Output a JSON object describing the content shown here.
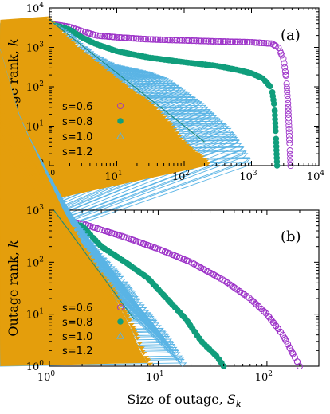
{
  "colors": {
    "s06": "#9d33c8",
    "s08": "#109e7c",
    "s10": "#5ab4e5",
    "s12": "#e49e0c",
    "fit": "#1f8a7a"
  },
  "shared": {
    "xlabel_prefix": "Size of outage, ",
    "xlabel_var": "S",
    "xlabel_sub": "k",
    "ylabel_prefix": "Outage rank, ",
    "ylabel_var": "k"
  },
  "chart_data": [
    {
      "panel_label": "(a)",
      "type": "scatter",
      "xscale": "log",
      "yscale": "log",
      "xlim": [
        1,
        10000
      ],
      "ylim": [
        1,
        10000
      ],
      "xticks": [
        1,
        10,
        100,
        1000,
        10000
      ],
      "yticks": [
        1,
        10,
        100,
        1000,
        10000
      ],
      "xlabel": "",
      "ylabel": "Outage rank, k",
      "legend_position": "bottom-left",
      "fit_line": {
        "x": [
          1,
          200
        ],
        "y": [
          5000,
          4
        ]
      },
      "series": [
        {
          "name": "s=0.6",
          "marker": "open-circle",
          "color": "#9d33c8",
          "points": [
            [
              1,
              4000
            ],
            [
              2,
              3300
            ],
            [
              3,
              2600
            ],
            [
              5,
              2000
            ],
            [
              10,
              1800
            ],
            [
              30,
              1600
            ],
            [
              100,
              1500
            ],
            [
              300,
              1420
            ],
            [
              1000,
              1350
            ],
            [
              2000,
              1250
            ],
            [
              2500,
              1000
            ],
            [
              3000,
              500
            ],
            [
              3300,
              150
            ],
            [
              3500,
              30
            ],
            [
              3700,
              3
            ],
            [
              3800,
              1
            ]
          ]
        },
        {
          "name": "s=0.8",
          "marker": "filled-circle",
          "color": "#109e7c",
          "points": [
            [
              1,
              4000
            ],
            [
              2,
              2800
            ],
            [
              3,
              1800
            ],
            [
              5,
              1200
            ],
            [
              10,
              800
            ],
            [
              30,
              550
            ],
            [
              100,
              420
            ],
            [
              300,
              340
            ],
            [
              600,
              270
            ],
            [
              1000,
              220
            ],
            [
              1500,
              160
            ],
            [
              2000,
              90
            ],
            [
              2200,
              30
            ],
            [
              2300,
              6
            ],
            [
              2400,
              1
            ]
          ]
        },
        {
          "name": "s=1.0",
          "marker": "open-triangle",
          "color": "#5ab4e5",
          "points": [
            [
              1,
              4000
            ],
            [
              2,
              2000
            ],
            [
              3,
              1100
            ],
            [
              5,
              550
            ],
            [
              10,
              300
            ],
            [
              30,
              200
            ],
            [
              60,
              130
            ],
            [
              100,
              70
            ],
            [
              200,
              30
            ],
            [
              300,
              15
            ],
            [
              500,
              7
            ],
            [
              700,
              3
            ],
            [
              900,
              1.5
            ],
            [
              1000,
              1
            ]
          ]
        },
        {
          "name": "s=1.2",
          "marker": "filled-triangle",
          "color": "#e49e0c",
          "points": [
            [
              1,
              5000
            ],
            [
              2,
              1600
            ],
            [
              3,
              800
            ],
            [
              5,
              400
            ],
            [
              10,
              150
            ],
            [
              20,
              60
            ],
            [
              30,
              40
            ],
            [
              50,
              18
            ],
            [
              80,
              7
            ],
            [
              100,
              4
            ],
            [
              150,
              2
            ],
            [
              200,
              1.5
            ],
            [
              250,
              1
            ]
          ]
        }
      ]
    },
    {
      "panel_label": "(b)",
      "type": "scatter",
      "xscale": "log",
      "yscale": "log",
      "xlim": [
        1,
        300
      ],
      "ylim": [
        1,
        1000
      ],
      "xticks": [
        1,
        10,
        100
      ],
      "yticks": [
        1,
        10,
        100,
        1000
      ],
      "xlabel": "Size of outage, S_k",
      "ylabel": "Outage rank, k",
      "legend_position": "bottom-left",
      "fit_line": {
        "x": [
          1.1,
          6
        ],
        "y": [
          1000,
          8
        ]
      },
      "series": [
        {
          "name": "s=0.6",
          "marker": "open-circle",
          "color": "#9d33c8",
          "points": [
            [
              1,
              1000
            ],
            [
              1.1,
              700
            ],
            [
              1.5,
              600
            ],
            [
              2,
              550
            ],
            [
              3,
              420
            ],
            [
              5,
              300
            ],
            [
              10,
              180
            ],
            [
              20,
              100
            ],
            [
              40,
              45
            ],
            [
              70,
              20
            ],
            [
              100,
              10
            ],
            [
              140,
              4
            ],
            [
              180,
              1.5
            ],
            [
              200,
              1
            ]
          ]
        },
        {
          "name": "s=0.8",
          "marker": "filled-circle",
          "color": "#109e7c",
          "points": [
            [
              1,
              1000
            ],
            [
              1.1,
              600
            ],
            [
              1.5,
              550
            ],
            [
              2,
              500
            ],
            [
              2.5,
              300
            ],
            [
              3,
              200
            ],
            [
              5,
              100
            ],
            [
              8,
              50
            ],
            [
              12,
              20
            ],
            [
              18,
              8
            ],
            [
              25,
              3
            ],
            [
              35,
              1.5
            ],
            [
              40,
              1
            ]
          ]
        },
        {
          "name": "s=1.0",
          "marker": "open-triangle",
          "color": "#5ab4e5",
          "points": [
            [
              1,
              1000
            ],
            [
              1.1,
              550
            ],
            [
              1.5,
              480
            ],
            [
              2,
              400
            ],
            [
              3,
              130
            ],
            [
              4,
              70
            ],
            [
              5,
              40
            ],
            [
              7,
              15
            ],
            [
              10,
              6
            ],
            [
              13,
              3
            ],
            [
              16,
              1.5
            ],
            [
              18,
              1
            ]
          ]
        },
        {
          "name": "s=1.2",
          "marker": "filled-triangle",
          "color": "#e49e0c",
          "points": [
            [
              1,
              1000
            ],
            [
              1.05,
              500
            ],
            [
              1.3,
              450
            ],
            [
              1.8,
              400
            ],
            [
              2,
              200
            ],
            [
              2.5,
              120
            ],
            [
              3,
              60
            ],
            [
              4,
              30
            ],
            [
              5,
              12
            ],
            [
              6,
              6
            ],
            [
              7,
              3
            ],
            [
              8,
              1.5
            ],
            [
              9,
              1
            ]
          ]
        }
      ]
    }
  ]
}
